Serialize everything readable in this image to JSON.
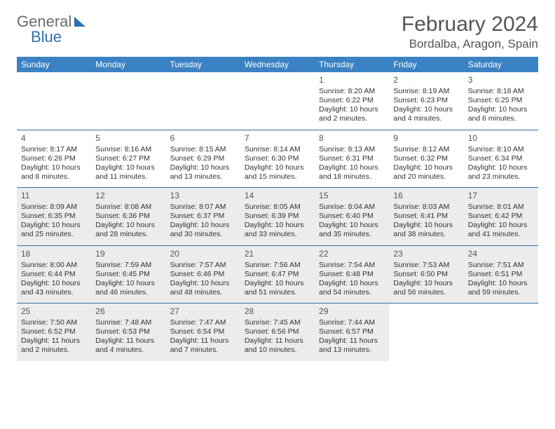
{
  "brand": {
    "part1": "General",
    "part2": "Blue"
  },
  "title": "February 2024",
  "location": "Bordalba, Aragon, Spain",
  "colors": {
    "header_bg": "#3b82c4",
    "header_text": "#ffffff",
    "rule": "#2f6fa8",
    "shaded_bg": "#ececec",
    "text": "#333333",
    "title_text": "#555555"
  },
  "dayNames": [
    "Sunday",
    "Monday",
    "Tuesday",
    "Wednesday",
    "Thursday",
    "Friday",
    "Saturday"
  ],
  "weeks": [
    [
      {
        "blank": true
      },
      {
        "blank": true
      },
      {
        "blank": true
      },
      {
        "blank": true
      },
      {
        "day": 1,
        "sunrise": "8:20 AM",
        "sunset": "6:22 PM",
        "daylight": "10 hours and 2 minutes."
      },
      {
        "day": 2,
        "sunrise": "8:19 AM",
        "sunset": "6:23 PM",
        "daylight": "10 hours and 4 minutes."
      },
      {
        "day": 3,
        "sunrise": "8:18 AM",
        "sunset": "6:25 PM",
        "daylight": "10 hours and 6 minutes."
      }
    ],
    [
      {
        "day": 4,
        "sunrise": "8:17 AM",
        "sunset": "6:26 PM",
        "daylight": "10 hours and 8 minutes."
      },
      {
        "day": 5,
        "sunrise": "8:16 AM",
        "sunset": "6:27 PM",
        "daylight": "10 hours and 11 minutes."
      },
      {
        "day": 6,
        "sunrise": "8:15 AM",
        "sunset": "6:29 PM",
        "daylight": "10 hours and 13 minutes."
      },
      {
        "day": 7,
        "sunrise": "8:14 AM",
        "sunset": "6:30 PM",
        "daylight": "10 hours and 15 minutes."
      },
      {
        "day": 8,
        "sunrise": "8:13 AM",
        "sunset": "6:31 PM",
        "daylight": "10 hours and 18 minutes."
      },
      {
        "day": 9,
        "sunrise": "8:12 AM",
        "sunset": "6:32 PM",
        "daylight": "10 hours and 20 minutes."
      },
      {
        "day": 10,
        "sunrise": "8:10 AM",
        "sunset": "6:34 PM",
        "daylight": "10 hours and 23 minutes."
      }
    ],
    [
      {
        "day": 11,
        "sunrise": "8:09 AM",
        "sunset": "6:35 PM",
        "daylight": "10 hours and 25 minutes.",
        "shaded": true
      },
      {
        "day": 12,
        "sunrise": "8:08 AM",
        "sunset": "6:36 PM",
        "daylight": "10 hours and 28 minutes.",
        "shaded": true
      },
      {
        "day": 13,
        "sunrise": "8:07 AM",
        "sunset": "6:37 PM",
        "daylight": "10 hours and 30 minutes.",
        "shaded": true
      },
      {
        "day": 14,
        "sunrise": "8:05 AM",
        "sunset": "6:39 PM",
        "daylight": "10 hours and 33 minutes.",
        "shaded": true
      },
      {
        "day": 15,
        "sunrise": "8:04 AM",
        "sunset": "6:40 PM",
        "daylight": "10 hours and 35 minutes.",
        "shaded": true
      },
      {
        "day": 16,
        "sunrise": "8:03 AM",
        "sunset": "6:41 PM",
        "daylight": "10 hours and 38 minutes.",
        "shaded": true
      },
      {
        "day": 17,
        "sunrise": "8:01 AM",
        "sunset": "6:42 PM",
        "daylight": "10 hours and 41 minutes.",
        "shaded": true
      }
    ],
    [
      {
        "day": 18,
        "sunrise": "8:00 AM",
        "sunset": "6:44 PM",
        "daylight": "10 hours and 43 minutes.",
        "shaded": true
      },
      {
        "day": 19,
        "sunrise": "7:59 AM",
        "sunset": "6:45 PM",
        "daylight": "10 hours and 46 minutes.",
        "shaded": true
      },
      {
        "day": 20,
        "sunrise": "7:57 AM",
        "sunset": "6:46 PM",
        "daylight": "10 hours and 48 minutes.",
        "shaded": true
      },
      {
        "day": 21,
        "sunrise": "7:56 AM",
        "sunset": "6:47 PM",
        "daylight": "10 hours and 51 minutes.",
        "shaded": true
      },
      {
        "day": 22,
        "sunrise": "7:54 AM",
        "sunset": "6:48 PM",
        "daylight": "10 hours and 54 minutes.",
        "shaded": true
      },
      {
        "day": 23,
        "sunrise": "7:53 AM",
        "sunset": "6:50 PM",
        "daylight": "10 hours and 56 minutes.",
        "shaded": true
      },
      {
        "day": 24,
        "sunrise": "7:51 AM",
        "sunset": "6:51 PM",
        "daylight": "10 hours and 59 minutes.",
        "shaded": true
      }
    ],
    [
      {
        "day": 25,
        "sunrise": "7:50 AM",
        "sunset": "6:52 PM",
        "daylight": "11 hours and 2 minutes.",
        "shaded": true
      },
      {
        "day": 26,
        "sunrise": "7:48 AM",
        "sunset": "6:53 PM",
        "daylight": "11 hours and 4 minutes.",
        "shaded": true
      },
      {
        "day": 27,
        "sunrise": "7:47 AM",
        "sunset": "6:54 PM",
        "daylight": "11 hours and 7 minutes.",
        "shaded": true
      },
      {
        "day": 28,
        "sunrise": "7:45 AM",
        "sunset": "6:56 PM",
        "daylight": "11 hours and 10 minutes.",
        "shaded": true
      },
      {
        "day": 29,
        "sunrise": "7:44 AM",
        "sunset": "6:57 PM",
        "daylight": "11 hours and 13 minutes.",
        "shaded": true
      },
      {
        "blank": true
      },
      {
        "blank": true
      }
    ]
  ],
  "labels": {
    "sunrise": "Sunrise:",
    "sunset": "Sunset:",
    "daylight": "Daylight:"
  }
}
